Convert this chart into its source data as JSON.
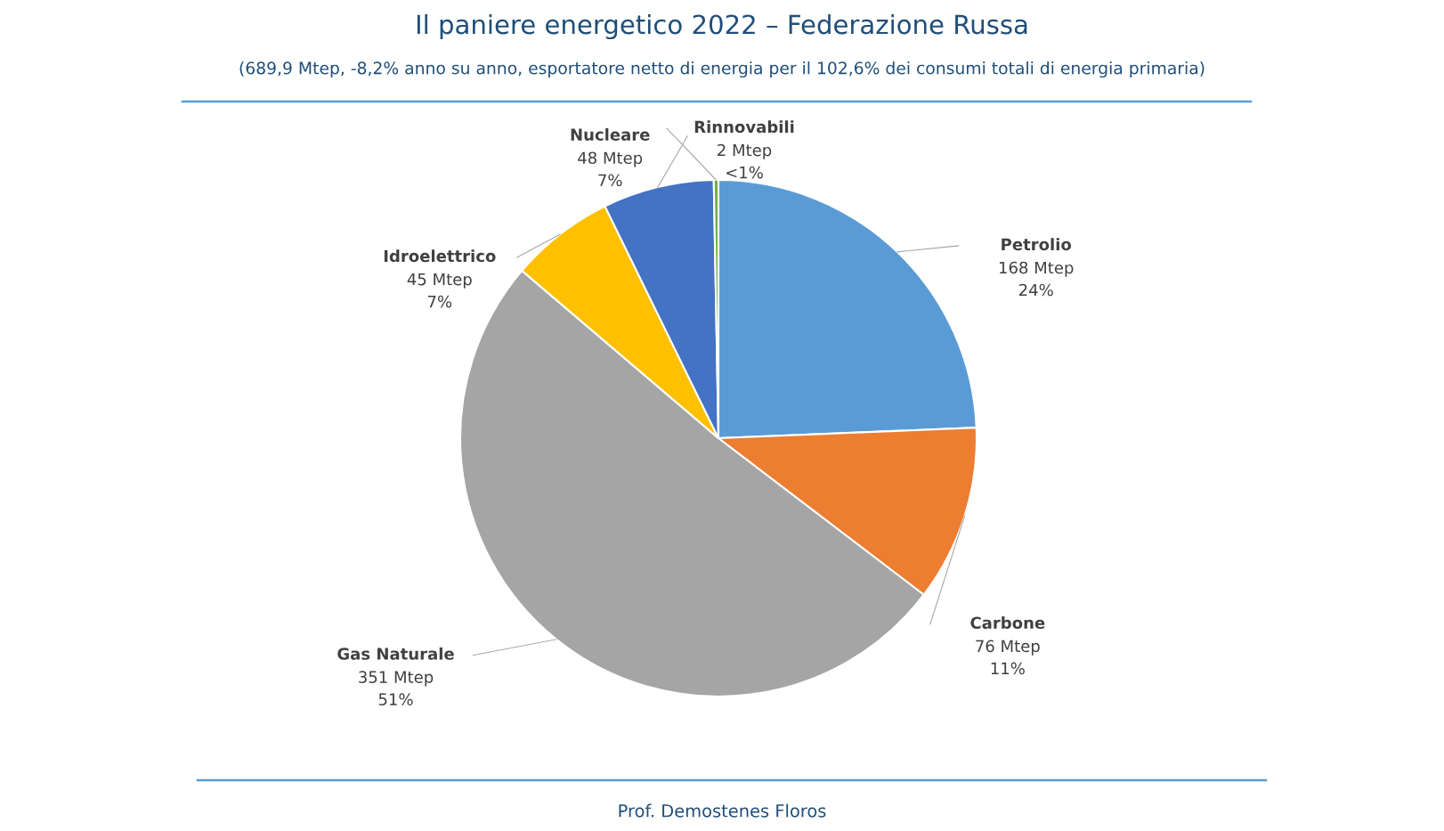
{
  "chart_data": {
    "type": "pie",
    "title": "Il paniere energetico 2022 – Federazione Russa",
    "subtitle": "(689,9 Mtep, -8,2% anno su anno, esportatore netto di energia per il 102,6% dei consumi totali di energia primaria)",
    "categories": [
      "Petrolio",
      "Carbone",
      "Gas Naturale",
      "Idroelettrico",
      "Nucleare",
      "Rinnovabili"
    ],
    "values": [
      168,
      76,
      351,
      45,
      48,
      2
    ],
    "colors": [
      "#5b9bd5",
      "#ed7d31",
      "#a5a5a5",
      "#ffc000",
      "#4472c4",
      "#70ad47"
    ],
    "value_labels": [
      "168 Mtep\n24%",
      "76 Mtep\n11%",
      "351 Mtep\n51%",
      "45 Mtep\n7%",
      "48 Mtep\n7%",
      "2 Mtep\n<1%"
    ],
    "annotations": [
      "Prof. Demostenes Floros"
    ],
    "legend": false
  }
}
